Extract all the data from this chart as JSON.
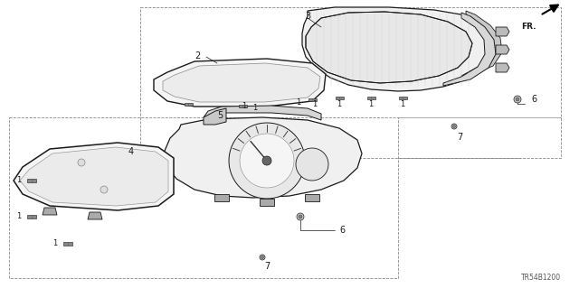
{
  "background_color": "#ffffff",
  "diagram_code": "TR54B1200",
  "line_color": "#1a1a1a",
  "text_color": "#1a1a1a",
  "figsize": [
    6.4,
    3.19
  ],
  "dpi": 100
}
